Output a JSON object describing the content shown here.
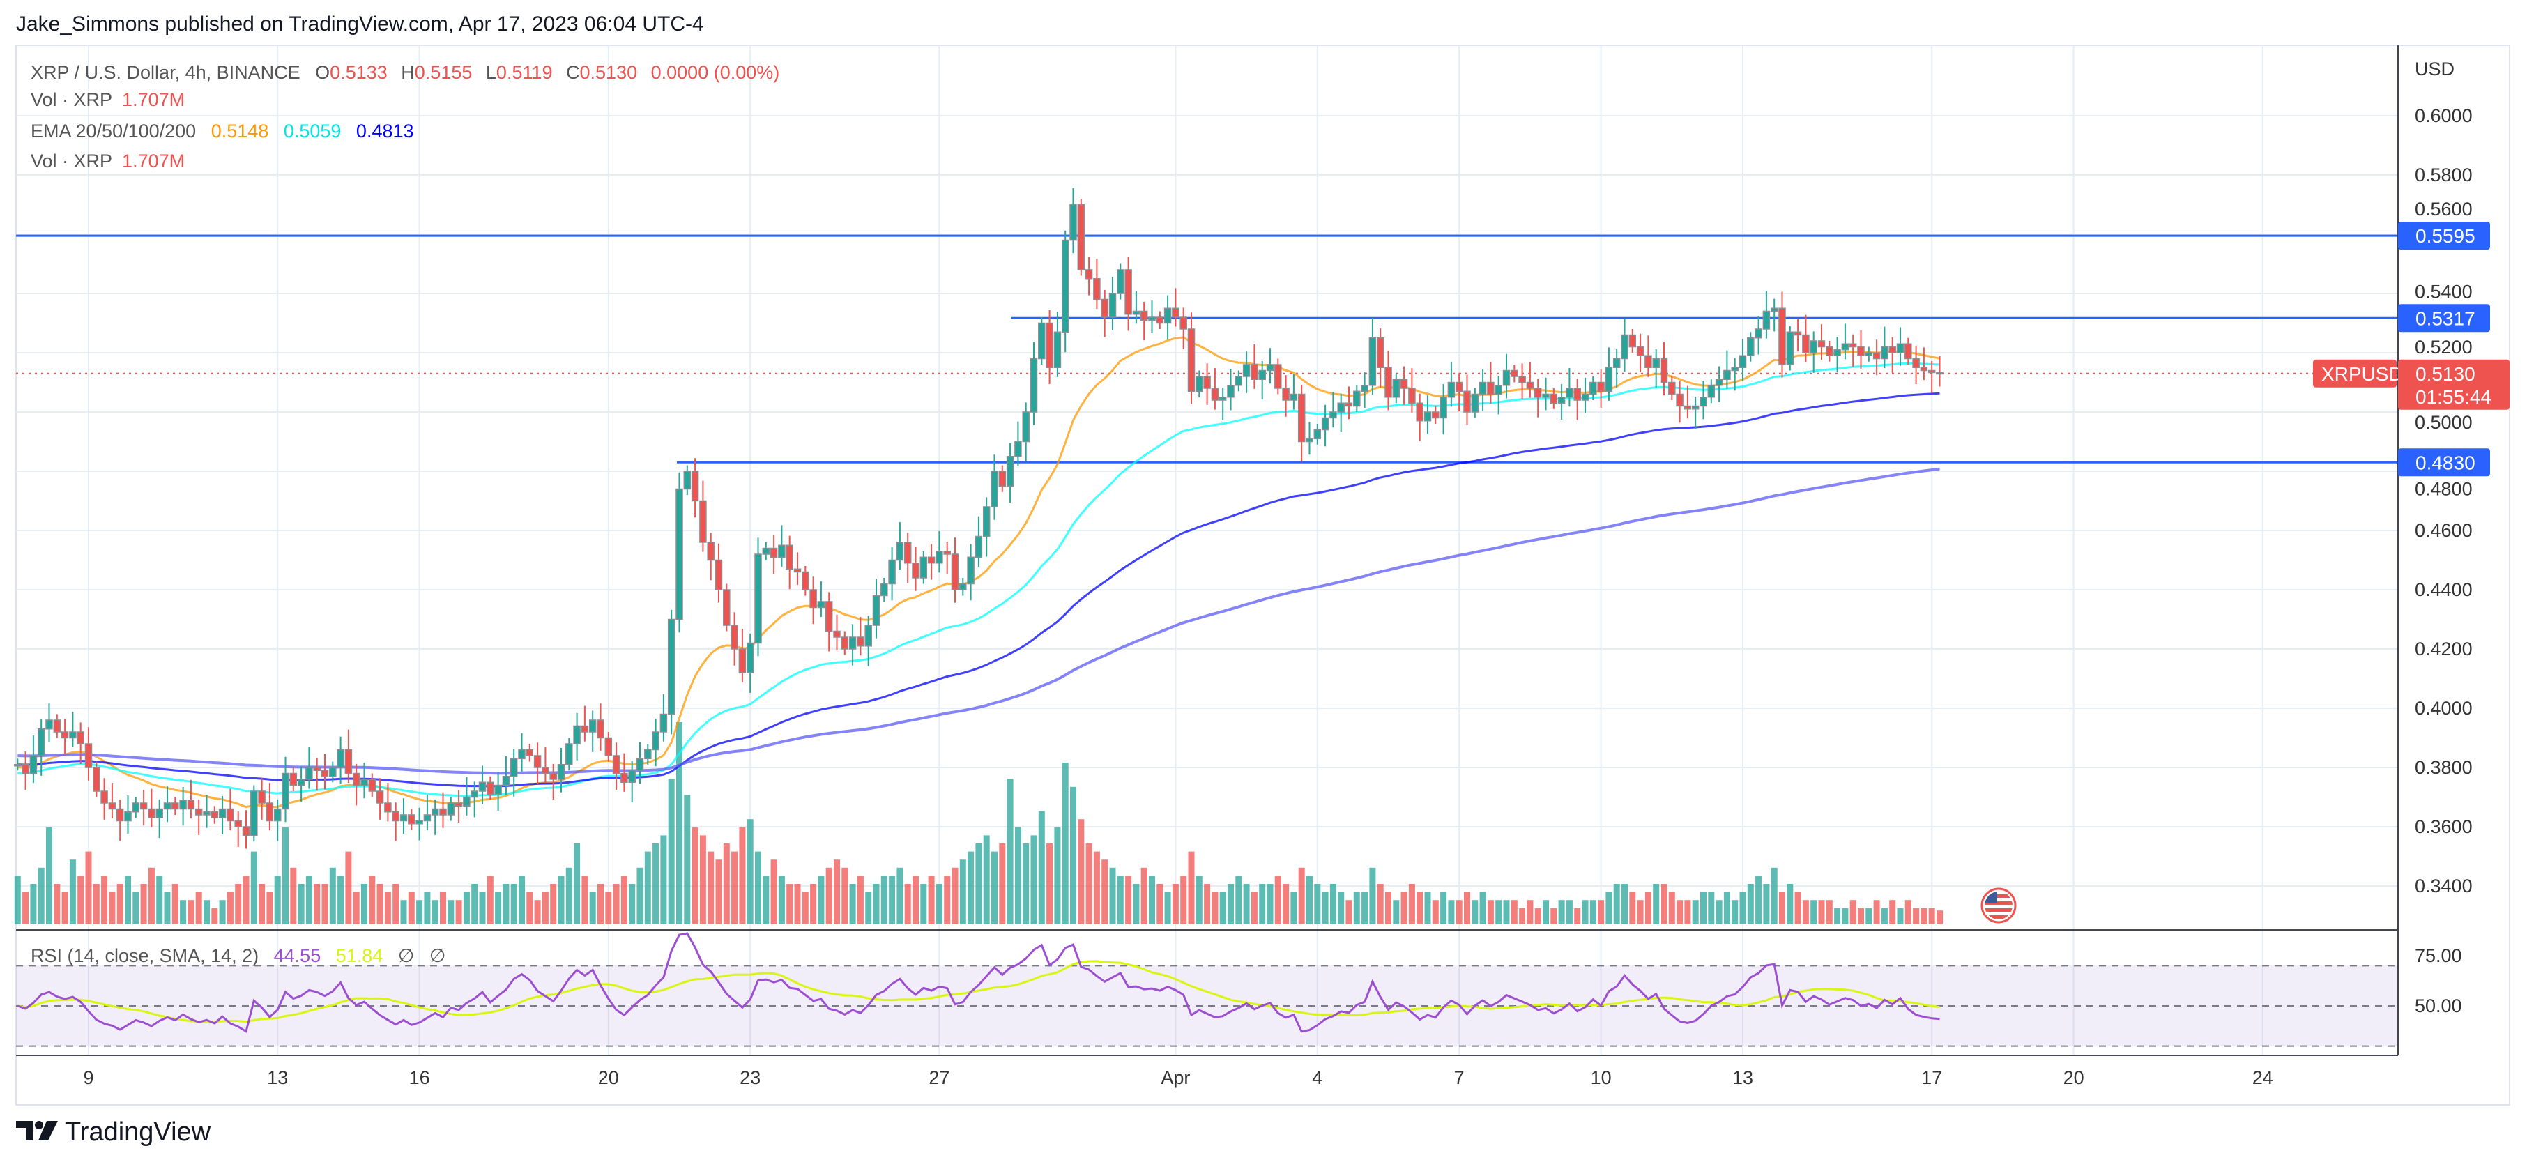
{
  "header": {
    "published": "Jake_Simmons published on TradingView.com, Apr 17, 2023 06:04 UTC-4"
  },
  "legend": {
    "symbol": "XRP / U.S. Dollar, 4h, BINANCE",
    "o_label": "O",
    "o": "0.5133",
    "h_label": "H",
    "h": "0.5155",
    "l_label": "L",
    "l": "0.5119",
    "c_label": "C",
    "c": "0.5130",
    "change": "0.0000 (0.00%)",
    "vol_label": "Vol · XRP",
    "vol": "1.707M",
    "ema_label": "EMA 20/50/100/200",
    "ema20": "0.5148",
    "ema50": "0.5059",
    "ema100": "0.4813",
    "vol2_label": "Vol · XRP",
    "vol2": "1.707M"
  },
  "rsi_legend": {
    "label": "RSI (14, close, SMA, 14, 2)",
    "rsi": "44.55",
    "sma": "51.84",
    "na1": "∅",
    "na2": "∅"
  },
  "price_axis": {
    "currency": "USD",
    "ticks": [
      "0.6000",
      "0.5800",
      "0.5600",
      "0.5400",
      "0.5200",
      "0.5000",
      "0.4800",
      "0.4600",
      "0.4400",
      "0.4200",
      "0.4000",
      "0.3800",
      "0.3600",
      "0.3400"
    ],
    "levels": [
      {
        "price": 0.5595,
        "label": "0.5595"
      },
      {
        "price": 0.5317,
        "label": "0.5317"
      },
      {
        "price": 0.483,
        "label": "0.4830"
      }
    ],
    "last": {
      "price": 0.513,
      "label": "0.5130",
      "countdown": "01:55:44",
      "symbol": "XRPUSD"
    }
  },
  "rsi_axis": {
    "ticks": [
      "75.00",
      "50.00"
    ]
  },
  "time_axis": {
    "labels": [
      "9",
      "13",
      "16",
      "20",
      "23",
      "27",
      "Apr",
      "4",
      "7",
      "10",
      "13",
      "17",
      "20",
      "24"
    ]
  },
  "footer": {
    "brand": "TradingView"
  },
  "colors": {
    "up": "#26a69a",
    "down": "#ef5350",
    "ema20": "#ff9800",
    "ema50": "#00ffff",
    "ema100": "#0000ff",
    "level": "#2962ff",
    "rsi": "#9c4fd1",
    "rsi_sma": "#d9f511"
  },
  "icons": {
    "flag": "us-flag-icon",
    "logo": "tradingview-logo-icon"
  },
  "chart_data": {
    "type": "candlestick",
    "interval": "4h",
    "first_candle": "2023-03-07 12:00",
    "last_candle": "2023-04-17 04:00",
    "closes": [
      0.381,
      0.378,
      0.384,
      0.393,
      0.396,
      0.392,
      0.39,
      0.392,
      0.388,
      0.38,
      0.372,
      0.368,
      0.366,
      0.362,
      0.365,
      0.368,
      0.366,
      0.363,
      0.366,
      0.368,
      0.366,
      0.369,
      0.366,
      0.364,
      0.365,
      0.363,
      0.366,
      0.362,
      0.36,
      0.357,
      0.372,
      0.368,
      0.362,
      0.366,
      0.378,
      0.374,
      0.376,
      0.38,
      0.379,
      0.377,
      0.38,
      0.386,
      0.378,
      0.374,
      0.376,
      0.372,
      0.368,
      0.365,
      0.362,
      0.364,
      0.361,
      0.362,
      0.364,
      0.366,
      0.364,
      0.368,
      0.367,
      0.37,
      0.372,
      0.375,
      0.371,
      0.374,
      0.377,
      0.383,
      0.386,
      0.384,
      0.38,
      0.378,
      0.376,
      0.381,
      0.388,
      0.394,
      0.392,
      0.396,
      0.39,
      0.384,
      0.378,
      0.375,
      0.379,
      0.383,
      0.386,
      0.392,
      0.398,
      0.43,
      0.474,
      0.48,
      0.47,
      0.456,
      0.45,
      0.44,
      0.428,
      0.42,
      0.412,
      0.422,
      0.452,
      0.454,
      0.451,
      0.455,
      0.447,
      0.446,
      0.44,
      0.434,
      0.436,
      0.426,
      0.424,
      0.42,
      0.424,
      0.421,
      0.428,
      0.438,
      0.442,
      0.45,
      0.456,
      0.449,
      0.444,
      0.451,
      0.449,
      0.453,
      0.452,
      0.44,
      0.442,
      0.451,
      0.458,
      0.468,
      0.48,
      0.475,
      0.485,
      0.49,
      0.5,
      0.518,
      0.53,
      0.515,
      0.527,
      0.558,
      0.57,
      0.548,
      0.545,
      0.538,
      0.532,
      0.54,
      0.548,
      0.533,
      0.534,
      0.531,
      0.532,
      0.53,
      0.535,
      0.532,
      0.528,
      0.507,
      0.512,
      0.508,
      0.504,
      0.505,
      0.509,
      0.512,
      0.516,
      0.511,
      0.514,
      0.516,
      0.508,
      0.504,
      0.506,
      0.49,
      0.491,
      0.494,
      0.498,
      0.5,
      0.503,
      0.502,
      0.507,
      0.509,
      0.525,
      0.515,
      0.505,
      0.511,
      0.508,
      0.503,
      0.497,
      0.5,
      0.498,
      0.505,
      0.51,
      0.507,
      0.5,
      0.506,
      0.51,
      0.506,
      0.509,
      0.514,
      0.512,
      0.51,
      0.508,
      0.505,
      0.506,
      0.503,
      0.505,
      0.508,
      0.504,
      0.506,
      0.51,
      0.507,
      0.515,
      0.518,
      0.526,
      0.522,
      0.519,
      0.515,
      0.518,
      0.51,
      0.506,
      0.502,
      0.501,
      0.502,
      0.505,
      0.509,
      0.511,
      0.514,
      0.515,
      0.519,
      0.525,
      0.528,
      0.534,
      0.535,
      0.516,
      0.527,
      0.526,
      0.52,
      0.524,
      0.522,
      0.519,
      0.521,
      0.523,
      0.522,
      0.519,
      0.52,
      0.518,
      0.522,
      0.52,
      0.523,
      0.518,
      0.515,
      0.514,
      0.5133,
      0.513
    ],
    "volumes_m": [
      6,
      4,
      5,
      7,
      12,
      5,
      4,
      8,
      6,
      9,
      5,
      6,
      4,
      5,
      6,
      4,
      5,
      7,
      6,
      4,
      5,
      3,
      3,
      4,
      3,
      2,
      3,
      4,
      5,
      6,
      9,
      5,
      4,
      6,
      12,
      7,
      5,
      6,
      5,
      5,
      7,
      6,
      9,
      4,
      5,
      6,
      5,
      4,
      5,
      3,
      4,
      3,
      4,
      3,
      4,
      3,
      3,
      4,
      5,
      4,
      6,
      4,
      5,
      5,
      6,
      4,
      3,
      4,
      5,
      6,
      7,
      10,
      6,
      4,
      5,
      4,
      5,
      6,
      5,
      7,
      9,
      10,
      11,
      18,
      25,
      16,
      12,
      11,
      9,
      8,
      10,
      9,
      12,
      13,
      9,
      6,
      8,
      6,
      5,
      5,
      4,
      5,
      6,
      7,
      8,
      7,
      5,
      6,
      4,
      5,
      6,
      6,
      7,
      5,
      6,
      5,
      6,
      5,
      6,
      7,
      8,
      9,
      10,
      11,
      9,
      10,
      18,
      12,
      10,
      11,
      14,
      10,
      12,
      20,
      17,
      13,
      10,
      9,
      8,
      7,
      6,
      6,
      5,
      7,
      6,
      5,
      4,
      5,
      6,
      9,
      6,
      5,
      4,
      4,
      5,
      6,
      5,
      4,
      5,
      5,
      6,
      5,
      4,
      7,
      6,
      5,
      4,
      5,
      4,
      3,
      4,
      4,
      7,
      5,
      4,
      3,
      4,
      5,
      4,
      4,
      3,
      4,
      3,
      3,
      4,
      3,
      4,
      3,
      3,
      3,
      3,
      2,
      3,
      2,
      3,
      2,
      3,
      3,
      2,
      3,
      3,
      3,
      4,
      5,
      5,
      4,
      3,
      4,
      5,
      5,
      4,
      3,
      3,
      3,
      4,
      4,
      3,
      4,
      3,
      4,
      5,
      6,
      5,
      7,
      4,
      5,
      4,
      3,
      3,
      3,
      3,
      2,
      2,
      3,
      2,
      2,
      3,
      2,
      3,
      2,
      3,
      2,
      2,
      2,
      1.707
    ],
    "ema_periods": [
      20,
      50,
      100,
      200
    ],
    "ema_start": [
      0.38,
      0.378,
      0.381,
      0.384
    ],
    "ylim": [
      0.33,
      0.615
    ],
    "rsi_ylim": [
      20,
      90
    ],
    "rsi_bands": [
      70,
      50,
      30
    ]
  }
}
